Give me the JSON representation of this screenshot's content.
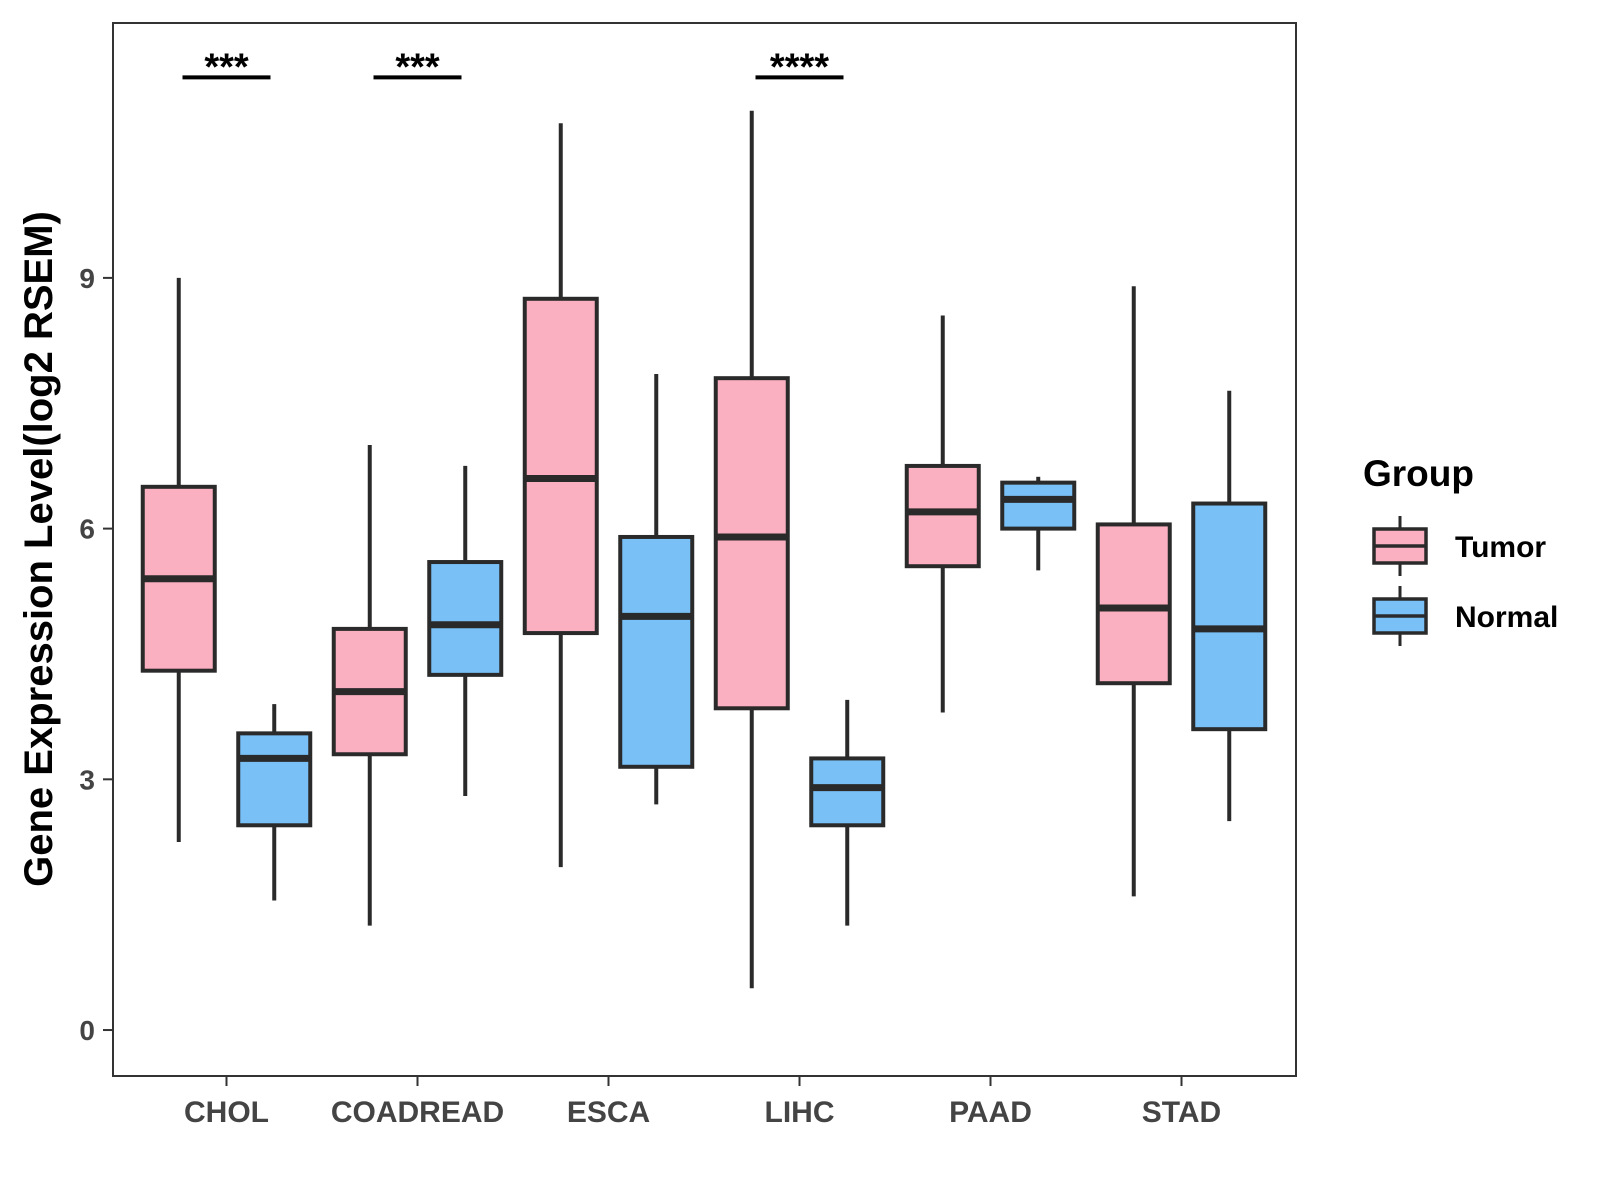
{
  "chart_data": {
    "type": "boxplot",
    "ylabel": "Gene Expression Level(log2 RSEM)",
    "xlabel": "",
    "ylim": [
      -0.55,
      12.05
    ],
    "yticks": [
      0,
      3,
      6,
      9
    ],
    "ytick_labels": [
      "0",
      "3",
      "6",
      "9"
    ],
    "categories": [
      "CHOL",
      "COADREAD",
      "ESCA",
      "LIHC",
      "PAAD",
      "STAD"
    ],
    "legend": {
      "title": "Group",
      "position": "right",
      "entries": [
        {
          "name": "Tumor",
          "color": "#fbb0c2"
        },
        {
          "name": "Normal",
          "color": "#78c0f6"
        }
      ]
    },
    "series": [
      {
        "name": "Tumor",
        "color": "#fbb0c2",
        "boxes": [
          {
            "category": "CHOL",
            "min": 2.25,
            "q1": 4.3,
            "median": 5.4,
            "q3": 6.5,
            "max": 9.0
          },
          {
            "category": "COADREAD",
            "min": 1.25,
            "q1": 3.3,
            "median": 4.05,
            "q3": 4.8,
            "max": 7.0
          },
          {
            "category": "ESCA",
            "min": 1.95,
            "q1": 4.75,
            "median": 6.6,
            "q3": 8.75,
            "max": 10.85
          },
          {
            "category": "LIHC",
            "min": 0.5,
            "q1": 3.85,
            "median": 5.9,
            "q3": 7.8,
            "max": 11.0
          },
          {
            "category": "PAAD",
            "min": 3.8,
            "q1": 5.55,
            "median": 6.2,
            "q3": 6.75,
            "max": 8.55
          },
          {
            "category": "STAD",
            "min": 1.6,
            "q1": 4.15,
            "median": 5.05,
            "q3": 6.05,
            "max": 8.9
          }
        ]
      },
      {
        "name": "Normal",
        "color": "#78c0f6",
        "boxes": [
          {
            "category": "CHOL",
            "min": 1.55,
            "q1": 2.45,
            "median": 3.25,
            "q3": 3.55,
            "max": 3.9
          },
          {
            "category": "COADREAD",
            "min": 2.8,
            "q1": 4.25,
            "median": 4.85,
            "q3": 5.6,
            "max": 6.75
          },
          {
            "category": "ESCA",
            "min": 2.7,
            "q1": 3.15,
            "median": 4.95,
            "q3": 5.9,
            "max": 7.85
          },
          {
            "category": "LIHC",
            "min": 1.25,
            "q1": 2.45,
            "median": 2.9,
            "q3": 3.25,
            "max": 3.95
          },
          {
            "category": "PAAD",
            "min": 5.5,
            "q1": 6.0,
            "median": 6.35,
            "q3": 6.55,
            "max": 6.62
          },
          {
            "category": "STAD",
            "min": 2.5,
            "q1": 3.6,
            "median": 4.8,
            "q3": 6.3,
            "max": 7.65
          }
        ]
      }
    ],
    "annotations": [
      {
        "category": "CHOL",
        "label": "***",
        "y": 11.4
      },
      {
        "category": "COADREAD",
        "label": "***",
        "y": 11.4
      },
      {
        "category": "LIHC",
        "label": "****",
        "y": 11.4
      }
    ]
  }
}
